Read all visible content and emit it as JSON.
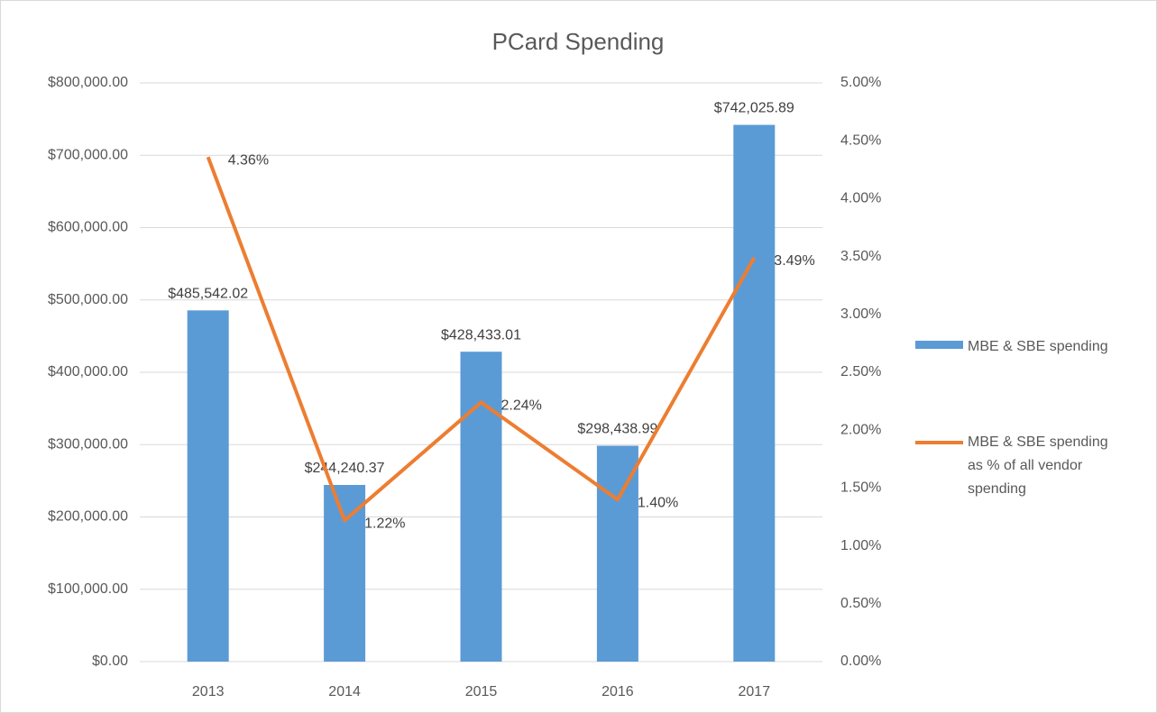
{
  "chart_data": {
    "type": "combo",
    "title": "PCard Spending",
    "categories": [
      "2013",
      "2014",
      "2015",
      "2016",
      "2017"
    ],
    "series": [
      {
        "name": "MBE & SBE spending",
        "type": "bar",
        "color": "#5b9bd5",
        "axis": "y",
        "values": [
          485542.02,
          244240.37,
          428433.01,
          298438.99,
          742025.89
        ],
        "value_labels": [
          "$485,542.02",
          "$244,240.37",
          "$428,433.01",
          "$298,438.99",
          "$742,025.89"
        ]
      },
      {
        "name": "MBE & SBE spending as % of all vendor spending",
        "type": "line",
        "color": "#ed7d31",
        "axis": "y2",
        "values": [
          4.36,
          1.22,
          2.24,
          1.4,
          3.49
        ],
        "value_labels": [
          "4.36%",
          "1.22%",
          "2.24%",
          "1.40%",
          "3.49%"
        ]
      }
    ],
    "ylim": [
      0,
      800000
    ],
    "yticks": [
      {
        "value": 0,
        "label": "$0.00"
      },
      {
        "value": 100000,
        "label": "$100,000.00"
      },
      {
        "value": 200000,
        "label": "$200,000.00"
      },
      {
        "value": 300000,
        "label": "$300,000.00"
      },
      {
        "value": 400000,
        "label": "$400,000.00"
      },
      {
        "value": 500000,
        "label": "$500,000.00"
      },
      {
        "value": 600000,
        "label": "$600,000.00"
      },
      {
        "value": 700000,
        "label": "$700,000.00"
      },
      {
        "value": 800000,
        "label": "$800,000.00"
      }
    ],
    "y2lim": [
      0,
      5
    ],
    "y2ticks": [
      {
        "value": 0,
        "label": "0.00%"
      },
      {
        "value": 0.5,
        "label": "0.50%"
      },
      {
        "value": 1,
        "label": "1.00%"
      },
      {
        "value": 1.5,
        "label": "1.50%"
      },
      {
        "value": 2,
        "label": "2.00%"
      },
      {
        "value": 2.5,
        "label": "2.50%"
      },
      {
        "value": 3,
        "label": "3.00%"
      },
      {
        "value": 3.5,
        "label": "3.50%"
      },
      {
        "value": 4,
        "label": "4.00%"
      },
      {
        "value": 4.5,
        "label": "4.50%"
      },
      {
        "value": 5,
        "label": "5.00%"
      }
    ],
    "grid": true,
    "legend": "right"
  }
}
